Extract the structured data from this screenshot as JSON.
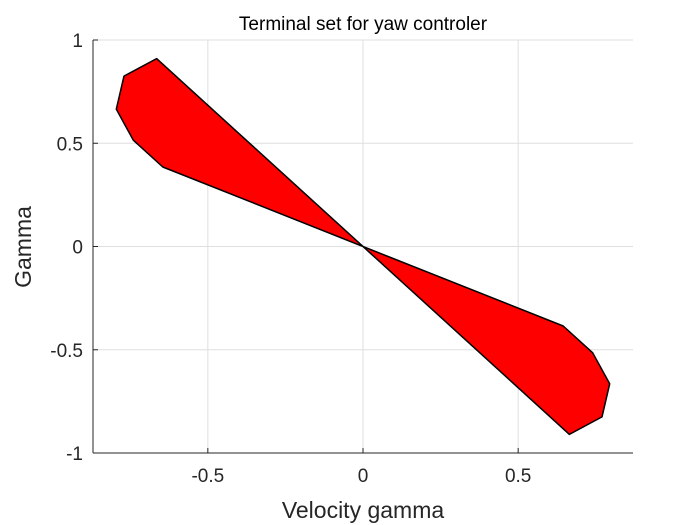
{
  "chart_data": {
    "type": "area",
    "title": "Terminal set for yaw controler",
    "xlabel": "Velocity gamma",
    "ylabel": "Gamma",
    "xlim": [
      -0.87,
      0.87
    ],
    "ylim": [
      -1,
      1
    ],
    "xticks": [
      -0.5,
      0,
      0.5
    ],
    "xtick_labels": [
      "-0.5",
      "0",
      "0.5"
    ],
    "yticks": [
      -1,
      -0.5,
      0,
      0.5,
      1
    ],
    "ytick_labels": [
      "-1",
      "-0.5",
      "0",
      "0.5",
      "1"
    ],
    "grid": true,
    "polygon": {
      "fill_color": "#ff0000",
      "edge_color": "#000000",
      "vertices": [
        [
          -0.665,
          0.91
        ],
        [
          -0.77,
          0.825
        ],
        [
          -0.795,
          0.665
        ],
        [
          -0.74,
          0.515
        ],
        [
          -0.645,
          0.385
        ],
        [
          0.645,
          -0.385
        ],
        [
          0.74,
          -0.515
        ],
        [
          0.795,
          -0.665
        ],
        [
          0.77,
          -0.825
        ],
        [
          0.665,
          -0.91
        ]
      ]
    }
  }
}
